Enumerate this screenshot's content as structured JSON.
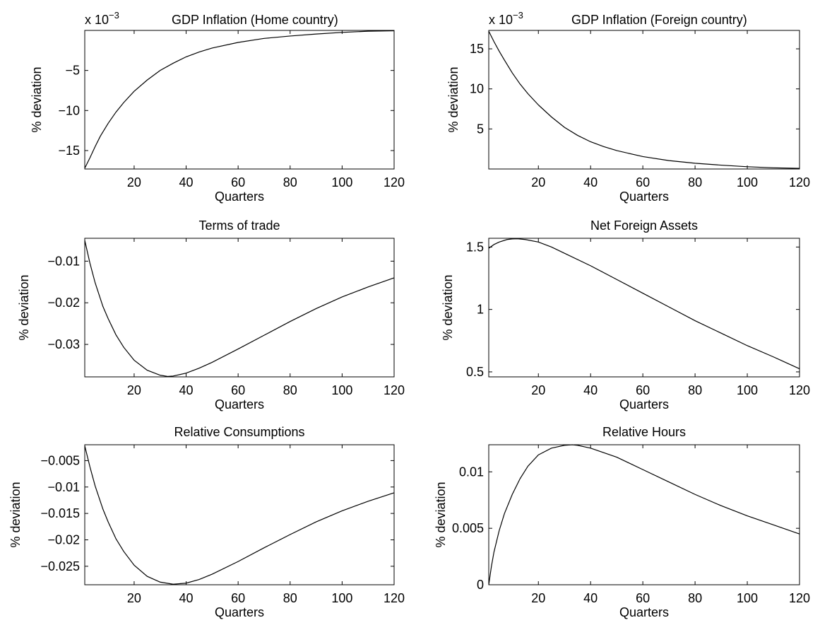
{
  "figure": {
    "xlabel": "Quarters",
    "ylabel": "% deviation"
  },
  "chart_data": [
    {
      "type": "line",
      "title": "GDP Inflation (Home country)",
      "multiplier": "x 10",
      "exponent": "−3",
      "xlabel": "Quarters",
      "ylabel": "% deviation",
      "xlim": [
        1,
        120
      ],
      "ylim": [
        -17.3,
        0
      ],
      "xticks": [
        20,
        40,
        60,
        80,
        100,
        120
      ],
      "yticks": [
        -15,
        -10,
        -5
      ],
      "ytick_labels": [
        "−15",
        "−10",
        "−5"
      ],
      "series": [
        {
          "x": [
            1,
            3,
            5,
            7,
            10,
            13,
            16,
            20,
            25,
            30,
            35,
            40,
            45,
            50,
            60,
            70,
            80,
            90,
            100,
            110,
            120
          ],
          "values": [
            -17.2,
            -15.9,
            -14.5,
            -13.2,
            -11.6,
            -10.2,
            -9.0,
            -7.6,
            -6.2,
            -5.0,
            -4.1,
            -3.3,
            -2.7,
            -2.2,
            -1.5,
            -1.0,
            -0.7,
            -0.45,
            -0.25,
            -0.1,
            -0.05
          ]
        }
      ]
    },
    {
      "type": "line",
      "title": "GDP Inflation (Foreign country)",
      "multiplier": "x 10",
      "exponent": "−3",
      "xlabel": "Quarters",
      "ylabel": "% deviation",
      "xlim": [
        1,
        120
      ],
      "ylim": [
        0,
        17.3
      ],
      "xticks": [
        20,
        40,
        60,
        80,
        100,
        120
      ],
      "yticks": [
        5,
        10,
        15
      ],
      "ytick_labels": [
        "5",
        "10",
        "15"
      ],
      "series": [
        {
          "x": [
            1,
            3,
            5,
            7,
            10,
            13,
            16,
            20,
            25,
            30,
            35,
            40,
            45,
            50,
            60,
            70,
            80,
            90,
            100,
            110,
            120
          ],
          "values": [
            17.2,
            15.9,
            14.7,
            13.6,
            12.0,
            10.6,
            9.4,
            8.0,
            6.5,
            5.2,
            4.2,
            3.4,
            2.8,
            2.3,
            1.55,
            1.05,
            0.72,
            0.48,
            0.28,
            0.15,
            0.08
          ]
        }
      ]
    },
    {
      "type": "line",
      "title": "Terms of trade",
      "xlabel": "Quarters",
      "ylabel": "% deviation",
      "xlim": [
        1,
        120
      ],
      "ylim": [
        -0.0378,
        -0.0045
      ],
      "xticks": [
        20,
        40,
        60,
        80,
        100,
        120
      ],
      "yticks": [
        -0.03,
        -0.02,
        -0.01
      ],
      "ytick_labels": [
        "−0.03",
        "−0.02",
        "−0.01"
      ],
      "series": [
        {
          "x": [
            1,
            3,
            5,
            8,
            10,
            13,
            16,
            20,
            25,
            30,
            33,
            35,
            40,
            45,
            50,
            60,
            70,
            80,
            90,
            100,
            110,
            120
          ],
          "values": [
            -0.005,
            -0.0105,
            -0.0152,
            -0.0209,
            -0.0238,
            -0.0277,
            -0.0307,
            -0.0338,
            -0.0362,
            -0.0374,
            -0.0377,
            -0.0376,
            -0.0369,
            -0.0357,
            -0.0343,
            -0.0311,
            -0.0278,
            -0.0245,
            -0.0214,
            -0.0186,
            -0.0162,
            -0.014
          ]
        }
      ]
    },
    {
      "type": "line",
      "title": "Net Foreign Assets",
      "xlabel": "Quarters",
      "ylabel": "% deviation",
      "xlim": [
        1,
        120
      ],
      "ylim": [
        0.46,
        1.57
      ],
      "xticks": [
        20,
        40,
        60,
        80,
        100,
        120
      ],
      "yticks": [
        0.5,
        1,
        1.5
      ],
      "ytick_labels": [
        "0.5",
        "1",
        "1.5"
      ],
      "series": [
        {
          "x": [
            1,
            3,
            5,
            8,
            10,
            12,
            15,
            20,
            25,
            30,
            40,
            50,
            60,
            70,
            80,
            90,
            100,
            110,
            120
          ],
          "values": [
            1.49,
            1.52,
            1.54,
            1.56,
            1.565,
            1.566,
            1.56,
            1.54,
            1.5,
            1.45,
            1.35,
            1.24,
            1.13,
            1.02,
            0.91,
            0.81,
            0.71,
            0.62,
            0.525
          ]
        }
      ]
    },
    {
      "type": "line",
      "title": "Relative Consumptions",
      "xlabel": "Quarters",
      "ylabel": "% deviation",
      "xlim": [
        1,
        120
      ],
      "ylim": [
        -0.0285,
        -0.002
      ],
      "xticks": [
        20,
        40,
        60,
        80,
        100,
        120
      ],
      "yticks": [
        -0.025,
        -0.02,
        -0.015,
        -0.01,
        -0.005
      ],
      "ytick_labels": [
        "−0.025",
        "−0.02",
        "−0.015",
        "−0.01",
        "−0.005"
      ],
      "series": [
        {
          "x": [
            1,
            3,
            5,
            8,
            10,
            13,
            16,
            20,
            25,
            30,
            35,
            40,
            45,
            50,
            60,
            70,
            80,
            90,
            100,
            110,
            120
          ],
          "values": [
            -0.0022,
            -0.0062,
            -0.0098,
            -0.0142,
            -0.0166,
            -0.0198,
            -0.0222,
            -0.0248,
            -0.0269,
            -0.028,
            -0.0284,
            -0.0282,
            -0.0275,
            -0.0265,
            -0.0241,
            -0.0215,
            -0.019,
            -0.0166,
            -0.0145,
            -0.0127,
            -0.0111
          ]
        }
      ]
    },
    {
      "type": "line",
      "title": "Relative Hours",
      "xlabel": "Quarters",
      "ylabel": "% deviation",
      "xlim": [
        1,
        120
      ],
      "ylim": [
        0,
        0.0124
      ],
      "xticks": [
        20,
        40,
        60,
        80,
        100,
        120
      ],
      "yticks": [
        0,
        0.005,
        0.01
      ],
      "ytick_labels": [
        "0",
        "0.005",
        "0.01"
      ],
      "series": [
        {
          "x": [
            1,
            2,
            3,
            5,
            7,
            10,
            13,
            16,
            20,
            25,
            30,
            33,
            35,
            40,
            50,
            60,
            70,
            80,
            90,
            100,
            110,
            120
          ],
          "values": [
            0.0,
            0.0016,
            0.0029,
            0.0048,
            0.0063,
            0.008,
            0.0094,
            0.0105,
            0.0115,
            0.0121,
            0.01235,
            0.0124,
            0.01235,
            0.0121,
            0.0113,
            0.0102,
            0.0091,
            0.008,
            0.007,
            0.0061,
            0.0053,
            0.0045
          ]
        }
      ]
    }
  ]
}
